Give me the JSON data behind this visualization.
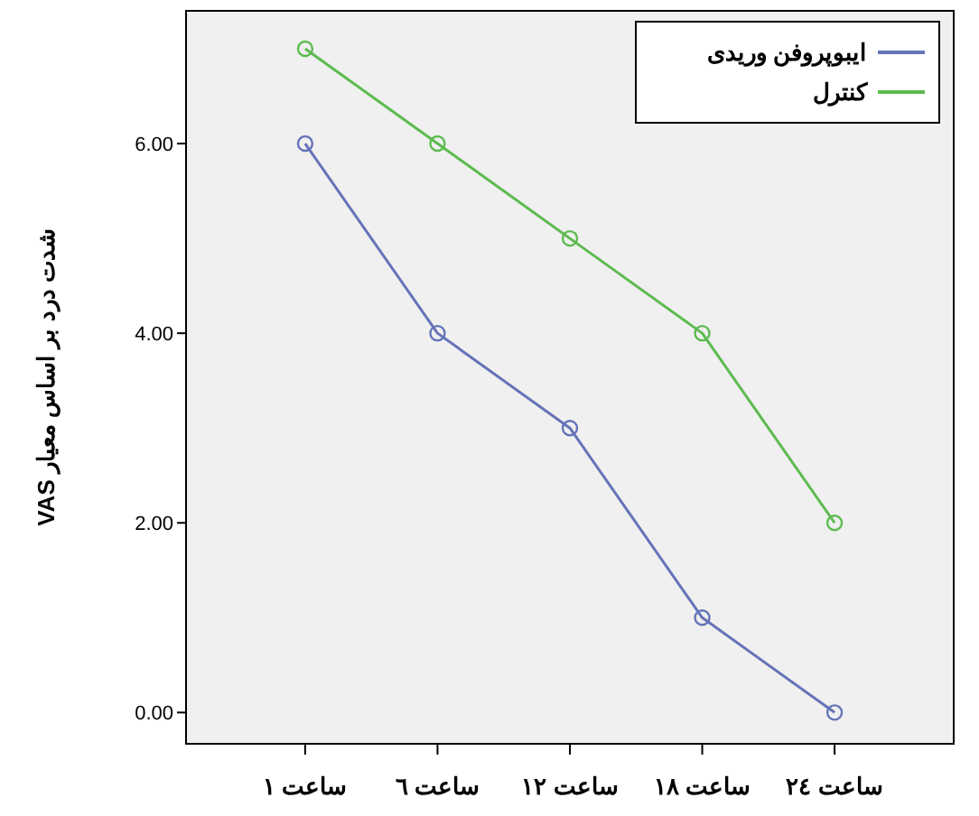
{
  "chart_data": {
    "type": "line",
    "ylabel": "شدت درد بر اساس معیار VAS",
    "categories": [
      "ساعت ١",
      "ساعت ٦",
      "ساعت ١٢",
      "ساعت ١٨",
      "ساعت ٢٤"
    ],
    "series": [
      {
        "name": "ایبوپروفن وریدی",
        "color": "#6674b8",
        "values": [
          6,
          4,
          3,
          1,
          0
        ]
      },
      {
        "name": "کنترل",
        "color": "#5dbb50",
        "values": [
          7,
          6,
          5,
          4,
          2
        ]
      }
    ],
    "ylim": [
      -0.33,
      7.4
    ],
    "yticks": [
      {
        "value": 0,
        "label": "0.00"
      },
      {
        "value": 2,
        "label": "2.00"
      },
      {
        "value": 4,
        "label": "4.00"
      },
      {
        "value": 6,
        "label": "6.00"
      }
    ],
    "grid": false,
    "legend": "top right",
    "marker": "circle",
    "line_style": "solid"
  }
}
